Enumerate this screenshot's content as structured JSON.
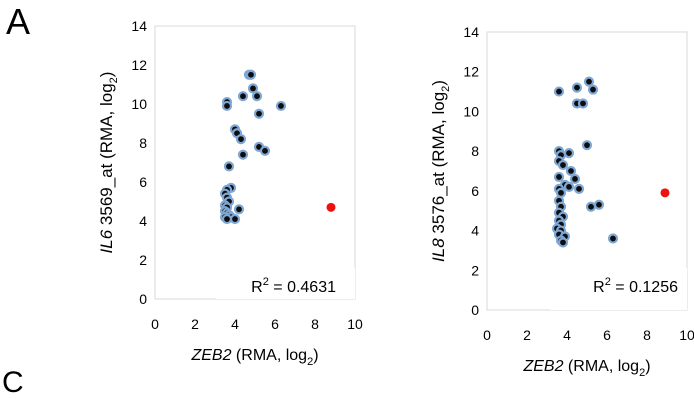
{
  "panel_letter": "A",
  "partial_letter_bottom": "C",
  "chart_data": [
    {
      "type": "scatter",
      "title": "",
      "ylabel": {
        "gene": "IL6",
        "probe": "3569_at",
        "unit_prefix": "(RMA, log",
        "unit_sub": "2",
        "unit_suffix": ")"
      },
      "xlabel": {
        "gene": "ZEB2",
        "unit_prefix": "(RMA, log",
        "unit_sub": "2",
        "unit_suffix": ")"
      },
      "xlim": [
        0,
        10
      ],
      "ylim": [
        0,
        14
      ],
      "xticks": [
        "0",
        "2",
        "4",
        "6",
        "8",
        "10"
      ],
      "yticks": [
        "0",
        "2",
        "4",
        "6",
        "8",
        "10",
        "12",
        "14"
      ],
      "grid": false,
      "annotation": {
        "prefix": "R",
        "sup": "2",
        "suffix": " = 0.4631"
      },
      "marker_color": "#0d0d0d",
      "marker_edge_color": "#7fa7d4",
      "highlight_color": "#ee1111",
      "points": [
        [
          4.7,
          11.5
        ],
        [
          4.8,
          11.5
        ],
        [
          4.4,
          10.4
        ],
        [
          4.9,
          10.8
        ],
        [
          3.6,
          10.1
        ],
        [
          3.6,
          9.9
        ],
        [
          5.1,
          10.4
        ],
        [
          6.3,
          9.9
        ],
        [
          5.2,
          9.5
        ],
        [
          4.0,
          8.7
        ],
        [
          4.1,
          8.5
        ],
        [
          4.3,
          8.2
        ],
        [
          5.2,
          7.8
        ],
        [
          5.5,
          7.6
        ],
        [
          4.4,
          7.4
        ],
        [
          3.7,
          6.8
        ],
        [
          3.8,
          5.7
        ],
        [
          3.6,
          5.6
        ],
        [
          3.5,
          5.4
        ],
        [
          3.6,
          5.2
        ],
        [
          3.7,
          5.0
        ],
        [
          3.5,
          4.8
        ],
        [
          3.6,
          4.7
        ],
        [
          4.2,
          4.6
        ],
        [
          3.5,
          4.5
        ],
        [
          3.6,
          4.4
        ],
        [
          3.7,
          4.3
        ],
        [
          3.5,
          4.2
        ],
        [
          3.8,
          4.2
        ],
        [
          4.0,
          4.1
        ],
        [
          3.6,
          4.1
        ]
      ],
      "highlight_points": [
        [
          8.8,
          4.7
        ]
      ]
    },
    {
      "type": "scatter",
      "title": "",
      "ylabel": {
        "gene": "IL8",
        "probe": "3576_at",
        "unit_prefix": "(RMA, log",
        "unit_sub": "2",
        "unit_suffix": ")"
      },
      "xlabel": {
        "gene": "ZEB2",
        "unit_prefix": "(RMA, log",
        "unit_sub": "2",
        "unit_suffix": ")"
      },
      "xlim": [
        0,
        10
      ],
      "ylim": [
        0,
        14
      ],
      "xticks": [
        "0",
        "2",
        "4",
        "6",
        "8",
        "10"
      ],
      "yticks": [
        "0",
        "2",
        "4",
        "6",
        "8",
        "10",
        "12",
        "14"
      ],
      "grid": false,
      "annotation": {
        "prefix": "R",
        "sup": "2",
        "suffix": " = 0.1256"
      },
      "marker_color": "#0d0d0d",
      "marker_edge_color": "#7fa7d4",
      "highlight_color": "#ee1111",
      "points": [
        [
          5.1,
          11.5
        ],
        [
          4.5,
          11.2
        ],
        [
          5.3,
          11.1
        ],
        [
          3.6,
          11.0
        ],
        [
          4.5,
          10.4
        ],
        [
          4.8,
          10.4
        ],
        [
          5.0,
          8.3
        ],
        [
          3.6,
          8.0
        ],
        [
          3.7,
          7.8
        ],
        [
          4.1,
          7.9
        ],
        [
          3.6,
          7.5
        ],
        [
          3.8,
          7.3
        ],
        [
          4.2,
          7.0
        ],
        [
          3.6,
          6.7
        ],
        [
          4.4,
          6.6
        ],
        [
          3.9,
          6.3
        ],
        [
          4.1,
          6.2
        ],
        [
          3.6,
          6.1
        ],
        [
          4.6,
          6.1
        ],
        [
          3.7,
          5.9
        ],
        [
          3.6,
          5.5
        ],
        [
          5.6,
          5.3
        ],
        [
          3.7,
          5.2
        ],
        [
          5.2,
          5.2
        ],
        [
          3.6,
          4.9
        ],
        [
          3.8,
          4.7
        ],
        [
          3.6,
          4.5
        ],
        [
          3.7,
          4.3
        ],
        [
          3.5,
          4.1
        ],
        [
          3.7,
          4.0
        ],
        [
          3.6,
          3.8
        ],
        [
          3.9,
          3.7
        ],
        [
          3.7,
          3.5
        ],
        [
          3.8,
          3.4
        ],
        [
          6.3,
          3.6
        ]
      ],
      "highlight_points": [
        [
          8.9,
          5.9
        ]
      ]
    }
  ]
}
